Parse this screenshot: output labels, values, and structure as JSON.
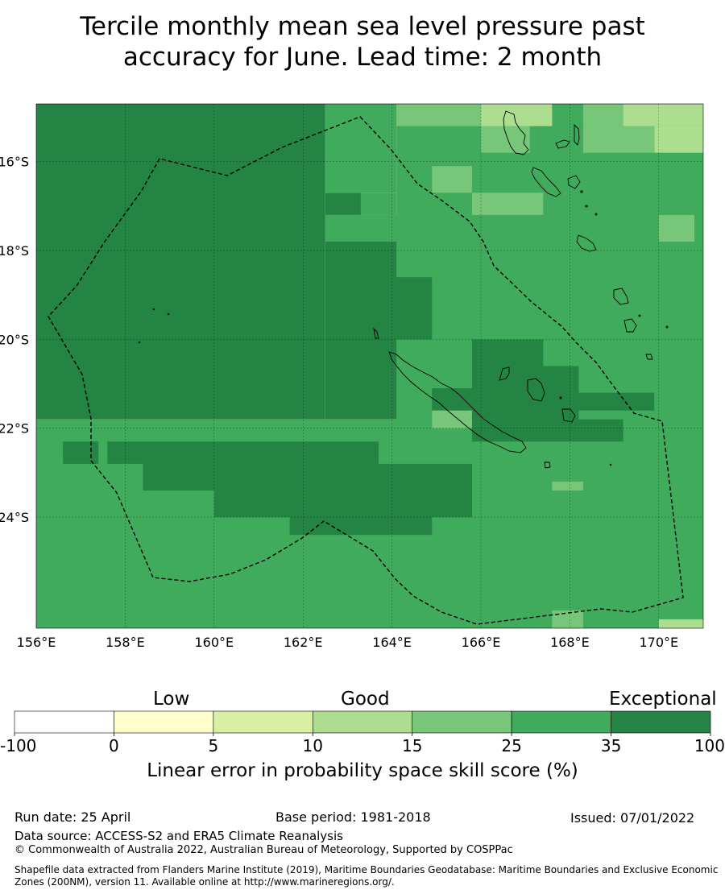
{
  "title": {
    "line1": "Tercile monthly mean sea level pressure past",
    "line2": "accuracy for June. Lead time: 2 month"
  },
  "map": {
    "x_ticks": [
      "156°E",
      "158°E",
      "160°E",
      "162°E",
      "164°E",
      "166°E",
      "168°E",
      "170°E"
    ],
    "y_ticks": [
      "16°S",
      "18°S",
      "20°S",
      "22°S",
      "24°S"
    ],
    "lon_range": [
      156,
      171
    ],
    "lat_range": [
      -26.5,
      -14.7
    ],
    "boundary": "dashed",
    "cells": [
      {
        "x": [
          156.0,
          162.5
        ],
        "y": [
          -14.7,
          -21.8
        ],
        "cls": 6
      },
      {
        "x": [
          162.5,
          165.8
        ],
        "y": [
          -17.2,
          -21.8
        ],
        "cls": 6
      },
      {
        "x": [
          162.5,
          163.3
        ],
        "y": [
          -16.7,
          -17.2
        ],
        "cls": 6
      },
      {
        "x": [
          162.5,
          164.1
        ],
        "y": [
          -14.7,
          -16.7
        ],
        "cls": 5
      },
      {
        "x": [
          164.1,
          171.0
        ],
        "y": [
          -14.7,
          -26.5
        ],
        "cls": 5
      },
      {
        "x": [
          163.3,
          164.1
        ],
        "y": [
          -16.7,
          -17.2
        ],
        "cls": 5
      },
      {
        "x": [
          156.0,
          171.0
        ],
        "y": [
          -21.8,
          -26.5
        ],
        "cls": 5
      },
      {
        "x": [
          157.6,
          163.7
        ],
        "y": [
          -22.3,
          -22.8
        ],
        "cls": 6
      },
      {
        "x": [
          158.4,
          165.8
        ],
        "y": [
          -22.8,
          -23.4
        ],
        "cls": 6
      },
      {
        "x": [
          160.0,
          165.8
        ],
        "y": [
          -23.4,
          -24.0
        ],
        "cls": 6
      },
      {
        "x": [
          156.6,
          157.4
        ],
        "y": [
          -22.3,
          -22.8
        ],
        "cls": 6
      },
      {
        "x": [
          161.7,
          164.9
        ],
        "y": [
          -24.0,
          -24.4
        ],
        "cls": 6
      },
      {
        "x": [
          164.1,
          164.9
        ],
        "y": [
          -18.6,
          -20.0
        ],
        "cls": 6
      },
      {
        "x": [
          165.8,
          167.4
        ],
        "y": [
          -20.0,
          -21.8
        ],
        "cls": 6
      },
      {
        "x": [
          167.4,
          168.2
        ],
        "y": [
          -20.6,
          -21.8
        ],
        "cls": 6
      },
      {
        "x": [
          168.2,
          169.9
        ],
        "y": [
          -21.2,
          -21.6
        ],
        "cls": 6
      },
      {
        "x": [
          165.8,
          169.2
        ],
        "y": [
          -21.8,
          -22.3
        ],
        "cls": 6
      },
      {
        "x": [
          164.9,
          165.8
        ],
        "y": [
          -21.1,
          -21.8
        ],
        "cls": 6
      },
      {
        "x": [
          164.1,
          166.0
        ],
        "y": [
          -14.7,
          -15.2
        ],
        "cls": 4
      },
      {
        "x": [
          166.0,
          167.6
        ],
        "y": [
          -14.7,
          -15.2
        ],
        "cls": 3
      },
      {
        "x": [
          166.0,
          167.1
        ],
        "y": [
          -15.2,
          -15.8
        ],
        "cls": 4
      },
      {
        "x": [
          168.3,
          169.2
        ],
        "y": [
          -14.7,
          -15.2
        ],
        "cls": 4
      },
      {
        "x": [
          169.2,
          171.0
        ],
        "y": [
          -14.7,
          -15.2
        ],
        "cls": 3
      },
      {
        "x": [
          169.9,
          171.0
        ],
        "y": [
          -15.2,
          -15.8
        ],
        "cls": 3
      },
      {
        "x": [
          168.3,
          169.9
        ],
        "y": [
          -15.2,
          -15.8
        ],
        "cls": 4
      },
      {
        "x": [
          164.9,
          165.8
        ],
        "y": [
          -16.1,
          -16.7
        ],
        "cls": 4
      },
      {
        "x": [
          165.8,
          167.4
        ],
        "y": [
          -16.7,
          -17.2
        ],
        "cls": 4
      },
      {
        "x": [
          170.0,
          170.8
        ],
        "y": [
          -17.2,
          -17.8
        ],
        "cls": 4
      },
      {
        "x": [
          162.5,
          164.1
        ],
        "y": [
          -17.2,
          -17.8
        ],
        "cls": 5
      },
      {
        "x": [
          167.6,
          168.3
        ],
        "y": [
          -23.2,
          -23.4
        ],
        "cls": 4
      },
      {
        "x": [
          167.6,
          168.3
        ],
        "y": [
          -26.1,
          -26.5
        ],
        "cls": 4
      },
      {
        "x": [
          170.0,
          171.0
        ],
        "y": [
          -26.3,
          -26.5
        ],
        "cls": 3
      },
      {
        "x": [
          164.9,
          165.8
        ],
        "y": [
          -21.6,
          -22.0
        ],
        "cls": 4
      }
    ]
  },
  "colorbar": {
    "categories": [
      "Low",
      "Good",
      "Exceptional"
    ],
    "ticks": [
      "-100",
      "0",
      "5",
      "10",
      "15",
      "25",
      "35",
      "100"
    ],
    "colors": [
      "#ffffff",
      "#ffffcc",
      "#d9f0a3",
      "#addd8e",
      "#78c679",
      "#41ab5d",
      "#238443"
    ],
    "label": "Linear error in probability space skill score (%)"
  },
  "footer": {
    "run_date": "Run date: 25 April",
    "base_period": "Base period: 1981-2018",
    "issued": "Issued: 07/01/2022",
    "data_source": "Data source: ACCESS-S2 and ERA5 Climate Reanalysis",
    "copyright": "© Commonwealth of Australia 2022, Australian Bureau of Meteorology, Supported by COSPPac",
    "shapefile": "Shapefile data extracted from Flanders Marine Institute (2019), Maritime Boundaries Geodatabase: Maritime Boundaries and Exclusive Economic Zones (200NM), version 11. Available online at http://www.marineregions.org/."
  }
}
